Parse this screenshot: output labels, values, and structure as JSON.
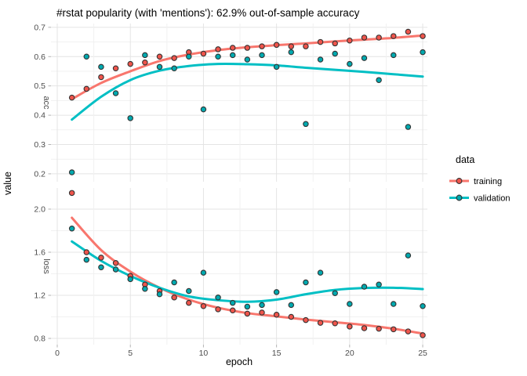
{
  "chart_data": {
    "type": "scatter",
    "title": "#rstat popularity (with 'mentions'): 62.9% out-of-sample accuracy",
    "xlabel": "epoch",
    "ylabel": "value",
    "legend_title": "data",
    "legend_position": "right",
    "grid": true,
    "point_outline": "#333333",
    "x": [
      1,
      2,
      3,
      4,
      5,
      6,
      7,
      8,
      9,
      10,
      11,
      12,
      13,
      14,
      15,
      16,
      17,
      18,
      19,
      20,
      21,
      22,
      23,
      24,
      25
    ],
    "xlim": [
      -0.43,
      25.32
    ],
    "x_ticks": [
      "0",
      "5",
      "10",
      "15",
      "20",
      "25"
    ],
    "x_minor_ticks": [
      2.5,
      7.5,
      12.5,
      17.5,
      22.5
    ],
    "smooth_x": [
      1,
      3,
      5,
      7,
      9,
      11,
      13,
      15,
      17,
      19,
      21,
      23,
      25
    ],
    "facets": [
      {
        "label": "acc",
        "ylim": [
          0.173,
          0.713
        ],
        "y_ticks": [
          "0.7",
          "0.6",
          "0.5",
          "0.4",
          "0.3",
          "0.2"
        ],
        "y_minor_ticks": [
          0.25,
          0.35,
          0.45,
          0.55,
          0.65
        ],
        "series": [
          {
            "name": "training",
            "color": "#f8766d",
            "point_color": "#ef544b",
            "values": [
              0.46,
              0.49,
              0.53,
              0.56,
              0.575,
              0.58,
              0.6,
              0.595,
              0.615,
              0.61,
              0.625,
              0.63,
              0.63,
              0.635,
              0.64,
              0.635,
              0.635,
              0.65,
              0.645,
              0.655,
              0.665,
              0.665,
              0.67,
              0.685,
              0.67
            ],
            "smooth": [
              0.455,
              0.51,
              0.55,
              0.585,
              0.607,
              0.622,
              0.632,
              0.639,
              0.645,
              0.652,
              0.658,
              0.664,
              0.672
            ]
          },
          {
            "name": "validation",
            "color": "#00bfc4",
            "point_color": "#00a9af",
            "values": [
              0.205,
              0.6,
              0.565,
              0.475,
              0.39,
              0.605,
              0.565,
              0.56,
              0.6,
              0.42,
              0.6,
              0.605,
              0.59,
              0.605,
              0.565,
              0.615,
              0.37,
              0.59,
              0.61,
              0.575,
              0.595,
              0.52,
              0.605,
              0.36,
              0.615
            ],
            "smooth": [
              0.385,
              0.463,
              0.52,
              0.552,
              0.568,
              0.575,
              0.574,
              0.57,
              0.562,
              0.555,
              0.548,
              0.54,
              0.532
            ]
          }
        ]
      },
      {
        "label": "loss",
        "ylim": [
          0.742,
          2.196
        ],
        "y_ticks": [
          "2.0",
          "1.6",
          "1.2",
          "0.8"
        ],
        "y_minor_ticks": [
          1.0,
          1.4,
          1.8
        ],
        "series": [
          {
            "name": "training",
            "color": "#f8766d",
            "point_color": "#ef544b",
            "values": [
              2.15,
              1.6,
              1.55,
              1.5,
              1.38,
              1.3,
              1.24,
              1.18,
              1.13,
              1.1,
              1.07,
              1.06,
              1.03,
              1.04,
              1.02,
              1.0,
              0.97,
              0.945,
              0.94,
              0.91,
              0.895,
              0.89,
              0.885,
              0.865,
              0.83
            ],
            "smooth": [
              1.92,
              1.62,
              1.42,
              1.27,
              1.16,
              1.085,
              1.035,
              1.005,
              0.975,
              0.95,
              0.925,
              0.89,
              0.845
            ]
          },
          {
            "name": "validation",
            "color": "#00bfc4",
            "point_color": "#00a9af",
            "values": [
              1.82,
              1.53,
              1.46,
              1.44,
              1.35,
              1.26,
              1.21,
              1.32,
              1.24,
              1.41,
              1.18,
              1.13,
              1.095,
              1.11,
              1.23,
              1.11,
              1.32,
              1.41,
              1.22,
              1.12,
              1.28,
              1.3,
              1.12,
              1.57,
              1.1
            ],
            "smooth": [
              1.7,
              1.52,
              1.38,
              1.27,
              1.19,
              1.155,
              1.14,
              1.16,
              1.21,
              1.25,
              1.268,
              1.27,
              1.258
            ]
          }
        ]
      }
    ]
  }
}
